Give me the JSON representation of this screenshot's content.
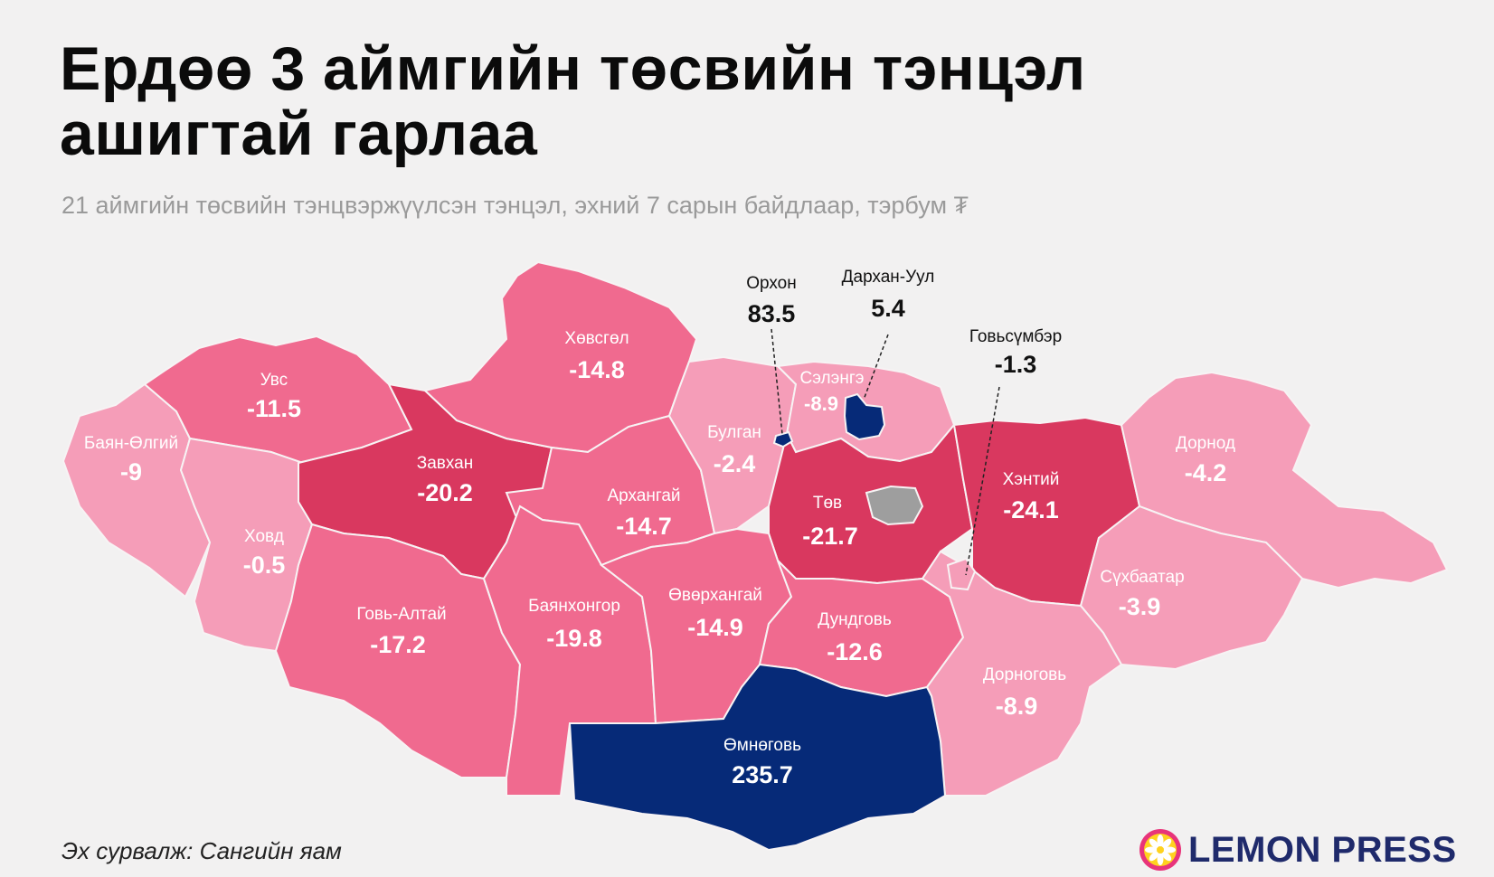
{
  "header": {
    "title": "Ердөө 3 аймгийн төсвийн тэнцэл ашигтай гарлаа",
    "subtitle": "21 аймгийн төсвийн тэнцвэржүүлсэн тэнцэл, эхний 7 сарын байдлаар, тэрбум ₮"
  },
  "colors": {
    "very_negative": "#d9385f",
    "negative": "#f06a8f",
    "slightly_negative": "#f59db8",
    "positive": "#062a78",
    "capital": "#9e9e9e",
    "background": "#f2f1f1"
  },
  "regions": {
    "bayan_olgii": {
      "name": "Баян-Өлгий",
      "value": "-9"
    },
    "uvs": {
      "name": "Увс",
      "value": "-11.5"
    },
    "khovd": {
      "name": "Ховд",
      "value": "-0.5"
    },
    "zavkhan": {
      "name": "Завхан",
      "value": "-20.2"
    },
    "khuvsgul": {
      "name": "Хөвсгөл",
      "value": "-14.8"
    },
    "arkhangai": {
      "name": "Архангай",
      "value": "-14.7"
    },
    "bulgan": {
      "name": "Булган",
      "value": "-2.4"
    },
    "selenge": {
      "name": "Сэлэнгэ",
      "value": "-8.9"
    },
    "orkhon": {
      "name": "Орхон",
      "value": "83.5"
    },
    "darkhan_uul": {
      "name": "Дархан-Уул",
      "value": "5.4"
    },
    "govisumber": {
      "name": "Говьсүмбэр",
      "value": "-1.3"
    },
    "tuv": {
      "name": "Төв",
      "value": "-21.7"
    },
    "khentii": {
      "name": "Хэнтий",
      "value": "-24.1"
    },
    "dornod": {
      "name": "Дорнод",
      "value": "-4.2"
    },
    "sukhbaatar": {
      "name": "Сүхбаатар",
      "value": "-3.9"
    },
    "govi_altai": {
      "name": "Говь-Алтай",
      "value": "-17.2"
    },
    "bayankhongor": {
      "name": "Баянхонгор",
      "value": "-19.8"
    },
    "uvurkhangai": {
      "name": "Өвөрхангай",
      "value": "-14.9"
    },
    "dundgovi": {
      "name": "Дундговь",
      "value": "-12.6"
    },
    "dornogovi": {
      "name": "Дорноговь",
      "value": "-8.9"
    },
    "umnugovi": {
      "name": "Өмнөговь",
      "value": "235.7"
    }
  },
  "footer": {
    "source": "Эх сурвалж: Сангийн яам",
    "brand": "LEMON PRESS"
  }
}
